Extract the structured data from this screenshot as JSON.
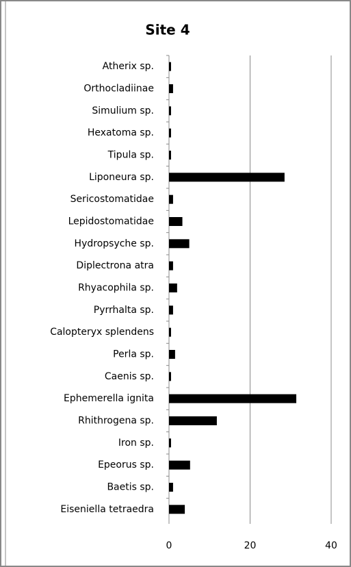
{
  "chart_data": {
    "type": "bar",
    "orientation": "horizontal",
    "title": "Site 4",
    "categories": [
      "Atherix sp.",
      "Orthocladiinae",
      "Simulium sp.",
      "Hexatoma sp.",
      "Tipula sp.",
      "Liponeura sp.",
      "Sericostomatidae",
      "Lepidostomatidae",
      "Hydropsyche sp.",
      "Diplectrona atra",
      "Rhyacophila sp.",
      "Pyrrhalta sp.",
      "Calopteryx splendens",
      "Perla sp.",
      "Caenis sp.",
      "Ephemerella ignita",
      "Rhithrogena sp.",
      "Iron sp.",
      "Epeorus sp.",
      "Baetis sp.",
      "Eiseniella tetraedra"
    ],
    "values": [
      0.5,
      1,
      0.5,
      0.5,
      0.5,
      28.5,
      1,
      3.3,
      5,
      1,
      2,
      1,
      0.5,
      1.5,
      0.5,
      31.4,
      11.8,
      0.5,
      5.2,
      1,
      3.9
    ],
    "color": "#000000",
    "xlim": [
      0,
      40
    ],
    "xticks": [
      0,
      20,
      40
    ],
    "grid": true
  }
}
